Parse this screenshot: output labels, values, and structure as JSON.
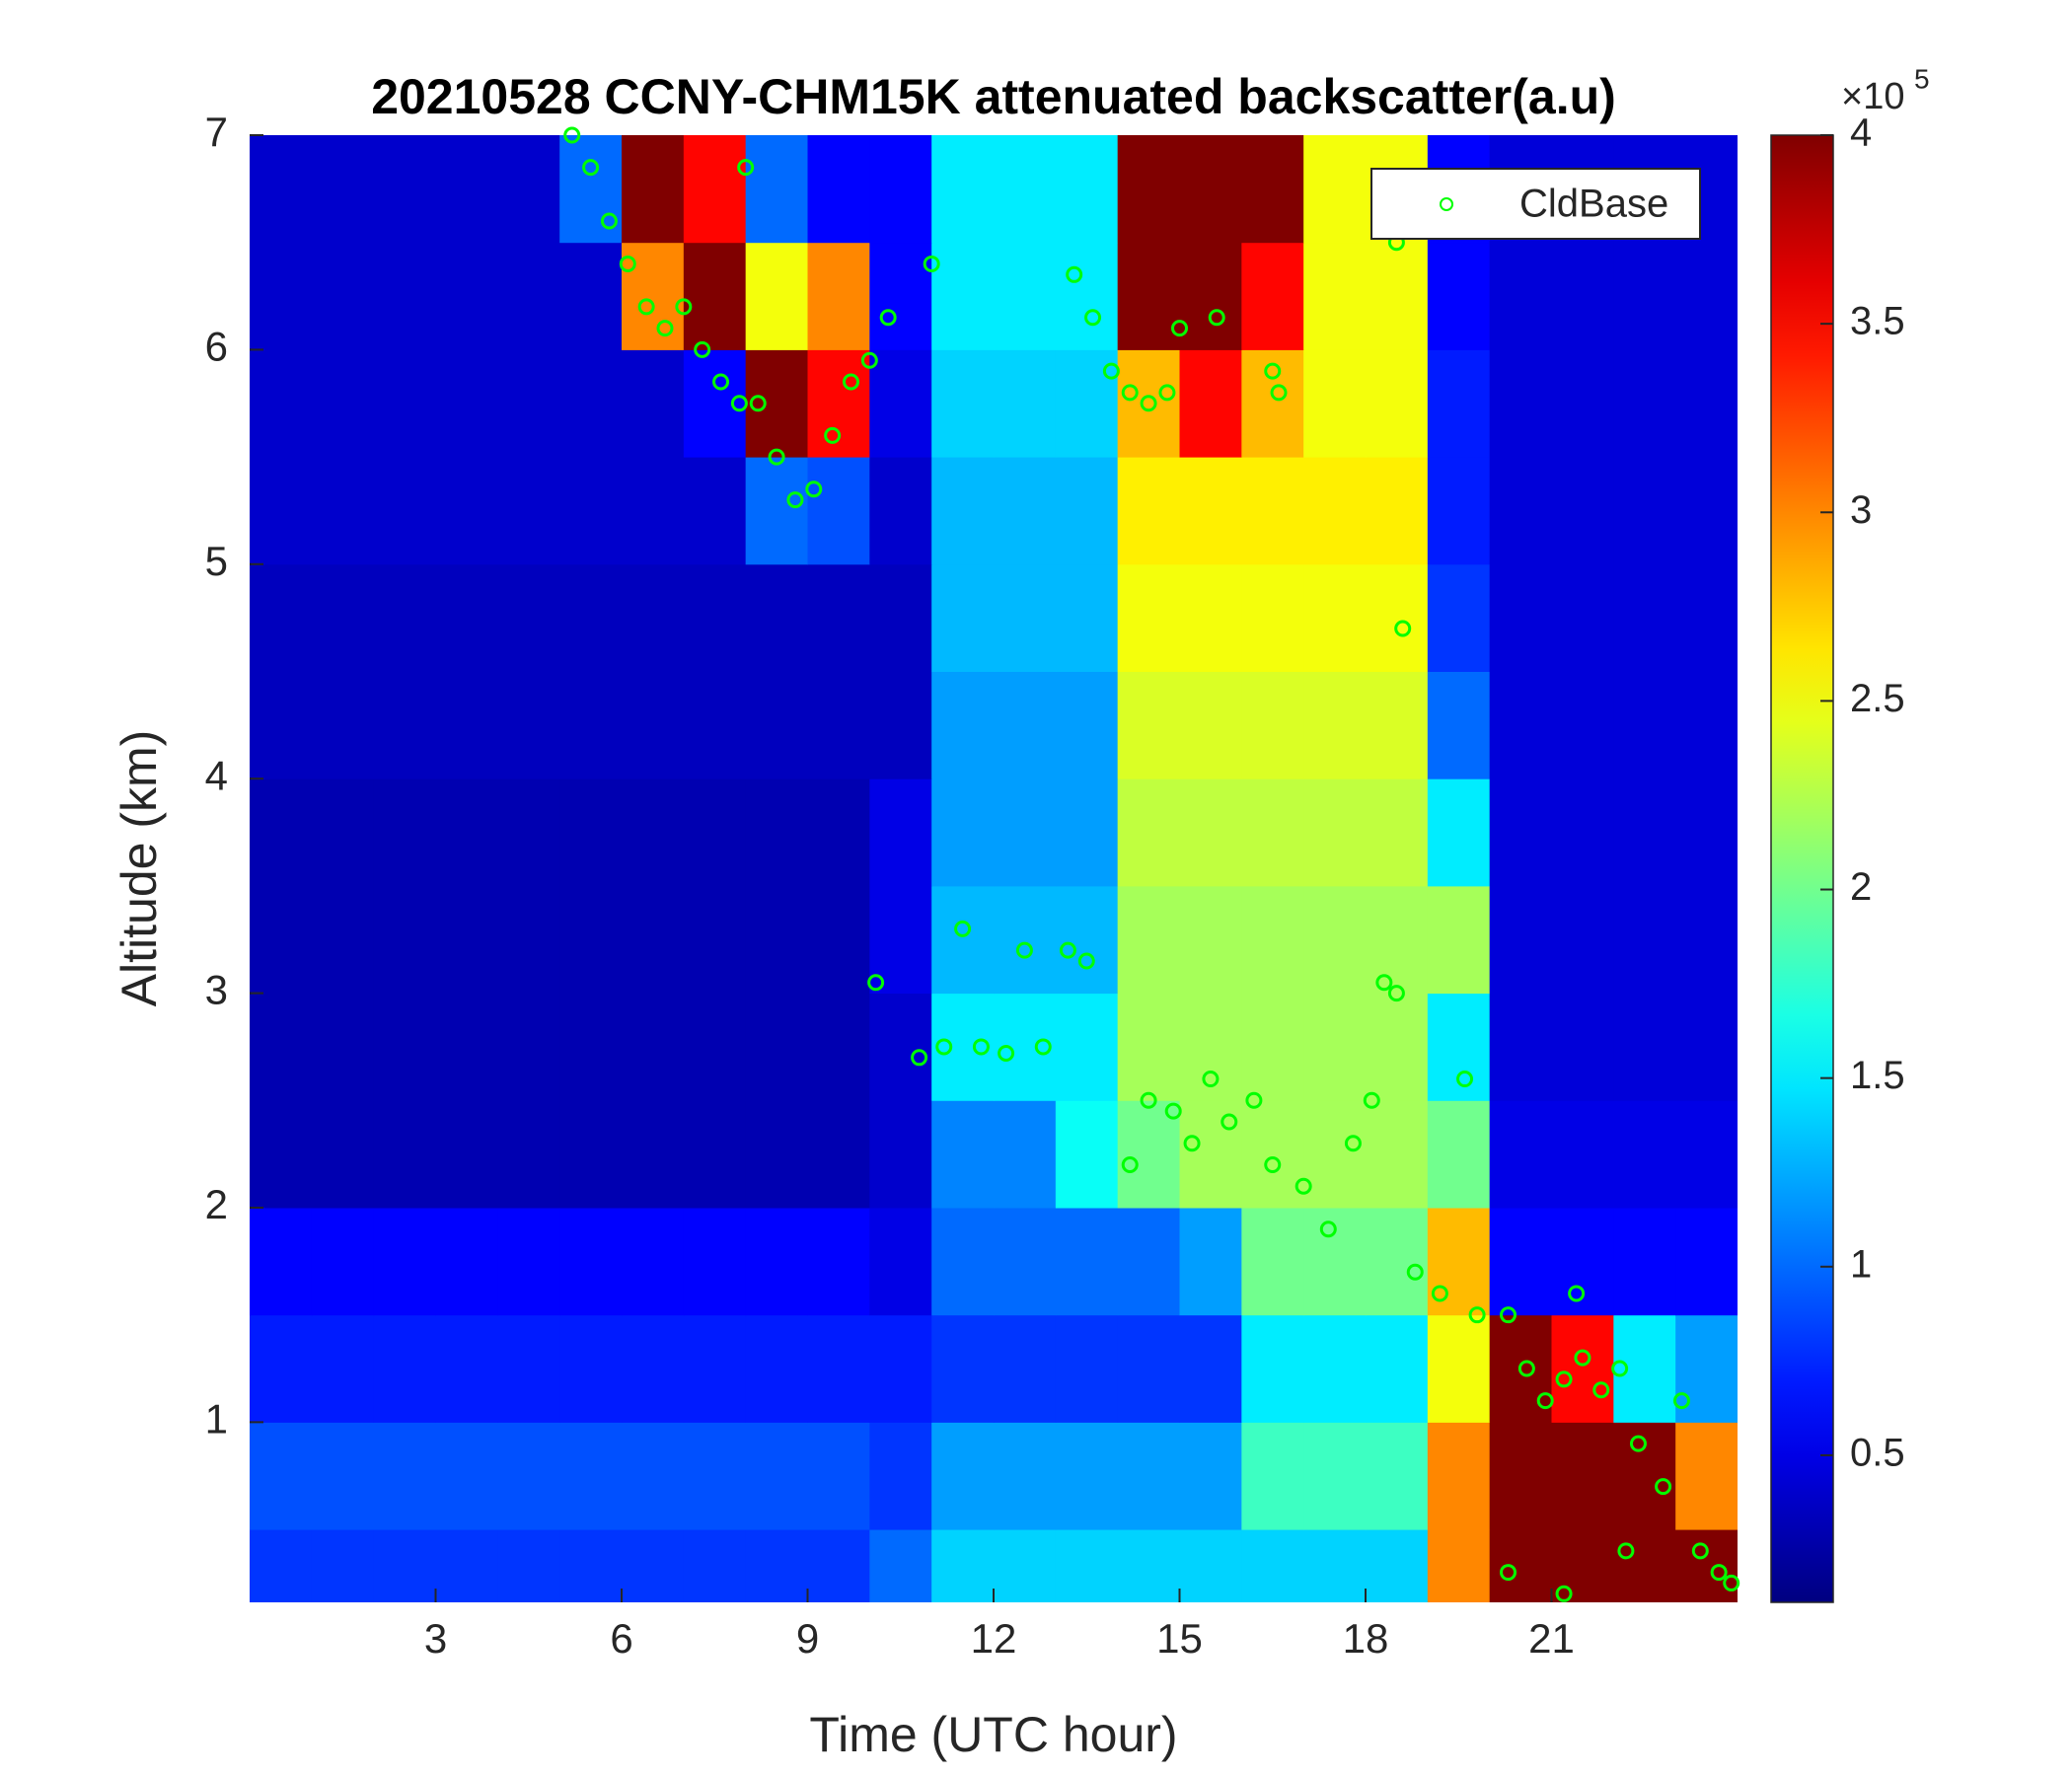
{
  "chart_data": {
    "type": "heatmap",
    "title": "20210528 CCNY-CHM15K attenuated backscatter(a.u)",
    "xlabel": "Time (UTC hour)",
    "ylabel": "Altitude (km)",
    "xlim": [
      0,
      24
    ],
    "xticks": [
      3,
      6,
      9,
      12,
      15,
      18,
      21
    ],
    "ylim": [
      0.16,
      7
    ],
    "yticks": [
      1,
      2,
      3,
      4,
      5,
      6,
      7
    ],
    "colormap": "jet",
    "clim": [
      0.11,
      4
    ],
    "cticks": [
      0.5,
      1,
      1.5,
      2,
      2.5,
      3,
      3.5,
      4
    ],
    "colorbar_multiplier": "×10",
    "colorbar_exponent": "5",
    "legend_position": "upper right",
    "x": [
      0.5,
      1.5,
      2.5,
      3.5,
      4.5,
      5.5,
      6.5,
      7.5,
      8.5,
      9.5,
      10.5,
      11.5,
      12.5,
      13.5,
      14.5,
      15.5,
      16.5,
      17.5,
      18.5,
      19.5,
      20.5,
      21.5,
      22.5,
      23.5
    ],
    "y": [
      0.25,
      0.75,
      1.25,
      1.75,
      2.25,
      2.75,
      3.25,
      3.75,
      4.25,
      4.75,
      5.25,
      5.75,
      6.25,
      6.75
    ],
    "z": [
      [
        0.8,
        0.8,
        0.8,
        0.8,
        0.8,
        0.8,
        0.8,
        0.8,
        0.8,
        0.8,
        1.0,
        1.4,
        1.4,
        1.4,
        1.4,
        1.4,
        1.4,
        1.4,
        1.4,
        3.0,
        4,
        4,
        4,
        4
      ],
      [
        0.9,
        0.9,
        0.9,
        0.9,
        0.9,
        0.9,
        0.9,
        0.9,
        0.9,
        0.9,
        0.8,
        1.2,
        1.2,
        1.2,
        1.2,
        1.2,
        1.8,
        1.8,
        1.8,
        3,
        4,
        4,
        4,
        3
      ],
      [
        0.7,
        0.7,
        0.7,
        0.7,
        0.7,
        0.7,
        0.7,
        0.7,
        0.7,
        0.7,
        0.7,
        0.8,
        0.8,
        0.8,
        0.8,
        0.8,
        1.5,
        1.5,
        1.5,
        2.5,
        4,
        3.5,
        1.5,
        1.2
      ],
      [
        0.6,
        0.6,
        0.6,
        0.6,
        0.6,
        0.6,
        0.6,
        0.6,
        0.6,
        0.6,
        0.5,
        1.0,
        1.0,
        1.0,
        1.0,
        1.2,
        2.0,
        2.0,
        2.0,
        2.8,
        0.6,
        0.6,
        0.6,
        0.6
      ],
      [
        0.3,
        0.3,
        0.3,
        0.3,
        0.3,
        0.3,
        0.3,
        0.3,
        0.3,
        0.3,
        0.4,
        1.1,
        1.1,
        1.6,
        2.0,
        2.2,
        2.2,
        2.2,
        2.2,
        2.0,
        0.5,
        0.5,
        0.5,
        0.5
      ],
      [
        0.3,
        0.3,
        0.3,
        0.3,
        0.3,
        0.3,
        0.3,
        0.3,
        0.3,
        0.3,
        0.4,
        1.5,
        1.5,
        1.5,
        2.2,
        2.2,
        2.2,
        2.2,
        2.2,
        1.5,
        0.45,
        0.45,
        0.45,
        0.45
      ],
      [
        0.3,
        0.3,
        0.3,
        0.3,
        0.3,
        0.3,
        0.3,
        0.3,
        0.3,
        0.3,
        0.5,
        1.3,
        1.3,
        1.3,
        2.2,
        2.2,
        2.2,
        2.2,
        2.2,
        2.2,
        0.45,
        0.45,
        0.45,
        0.45
      ],
      [
        0.3,
        0.3,
        0.3,
        0.3,
        0.3,
        0.3,
        0.3,
        0.3,
        0.3,
        0.3,
        0.5,
        1.2,
        1.2,
        1.2,
        2.3,
        2.3,
        2.3,
        2.3,
        2.3,
        1.5,
        0.45,
        0.45,
        0.45,
        0.45
      ],
      [
        0.35,
        0.35,
        0.35,
        0.35,
        0.35,
        0.35,
        0.35,
        0.35,
        0.35,
        0.35,
        0.35,
        1.2,
        1.2,
        1.2,
        2.4,
        2.4,
        2.4,
        2.4,
        2.4,
        1.0,
        0.45,
        0.45,
        0.45,
        0.45
      ],
      [
        0.35,
        0.35,
        0.35,
        0.35,
        0.35,
        0.35,
        0.35,
        0.35,
        0.35,
        0.35,
        0.35,
        1.3,
        1.3,
        1.3,
        2.5,
        2.5,
        2.5,
        2.5,
        2.5,
        0.8,
        0.45,
        0.45,
        0.45,
        0.45
      ],
      [
        0.4,
        0.4,
        0.4,
        0.4,
        0.4,
        0.4,
        0.4,
        0.4,
        1.0,
        0.9,
        0.4,
        1.3,
        1.3,
        1.3,
        2.6,
        2.6,
        2.6,
        2.6,
        2.6,
        0.7,
        0.45,
        0.45,
        0.45,
        0.45
      ],
      [
        0.4,
        0.4,
        0.4,
        0.4,
        0.4,
        0.4,
        0.4,
        0.6,
        4,
        3.5,
        0.5,
        1.4,
        1.4,
        1.4,
        2.8,
        3.5,
        2.8,
        2.5,
        2.5,
        0.7,
        0.45,
        0.45,
        0.45,
        0.45
      ],
      [
        0.4,
        0.4,
        0.4,
        0.4,
        0.4,
        0.4,
        3.0,
        4,
        2.5,
        3.0,
        0.6,
        1.5,
        1.5,
        1.5,
        4,
        4,
        3.5,
        2.5,
        2.5,
        0.6,
        0.45,
        0.45,
        0.45,
        0.45
      ],
      [
        0.4,
        0.4,
        0.4,
        0.4,
        0.4,
        1.0,
        4,
        3.5,
        1.0,
        0.6,
        0.6,
        1.5,
        1.5,
        1.5,
        4,
        4,
        4,
        2.5,
        2.5,
        0.6,
        0.45,
        0.45,
        0.45,
        0.45
      ]
    ],
    "series": [
      {
        "name": "CldBase",
        "type": "scatter",
        "color": "#00ff00",
        "x": [
          5.2,
          5.5,
          5.8,
          6.1,
          6.4,
          6.7,
          7.0,
          7.3,
          7.6,
          7.9,
          8.2,
          8.5,
          8.8,
          9.1,
          9.4,
          9.7,
          10.0,
          10.3,
          8.0,
          13.3,
          13.6,
          13.9,
          14.2,
          14.5,
          14.8,
          15.0,
          15.6,
          16.5,
          16.6,
          10.1,
          10.8,
          11.2,
          11.5,
          11.8,
          12.2,
          12.5,
          12.8,
          13.2,
          13.5,
          14.2,
          14.5,
          14.9,
          15.2,
          15.5,
          15.8,
          16.2,
          16.5,
          17.0,
          17.4,
          17.8,
          18.1,
          18.3,
          18.6,
          18.5,
          18.8,
          19.2,
          19.6,
          19.8,
          20.3,
          20.6,
          20.9,
          21.2,
          21.5,
          21.8,
          22.1,
          22.4,
          22.8,
          23.1,
          23.4,
          23.7,
          23.9,
          22.2,
          21.2,
          20.3,
          21.4,
          11.0,
          18.5
        ],
        "y": [
          7.0,
          6.85,
          6.6,
          6.4,
          6.2,
          6.1,
          6.2,
          6.0,
          5.85,
          5.75,
          5.75,
          5.5,
          5.3,
          5.35,
          5.6,
          5.85,
          5.95,
          6.15,
          6.85,
          6.35,
          6.15,
          5.9,
          5.8,
          5.75,
          5.8,
          6.1,
          6.15,
          5.9,
          5.8,
          3.05,
          2.7,
          2.75,
          3.3,
          2.75,
          2.72,
          3.2,
          2.75,
          3.2,
          3.15,
          2.2,
          2.5,
          2.45,
          2.3,
          2.6,
          2.4,
          2.5,
          2.2,
          2.1,
          1.9,
          2.3,
          2.5,
          3.05,
          4.7,
          3.0,
          1.7,
          1.6,
          2.6,
          1.5,
          1.5,
          1.25,
          1.1,
          1.2,
          1.3,
          1.15,
          1.25,
          0.9,
          0.7,
          1.1,
          0.4,
          0.3,
          0.25,
          0.4,
          0.2,
          0.3,
          1.6,
          6.4,
          6.5
        ]
      }
    ]
  }
}
